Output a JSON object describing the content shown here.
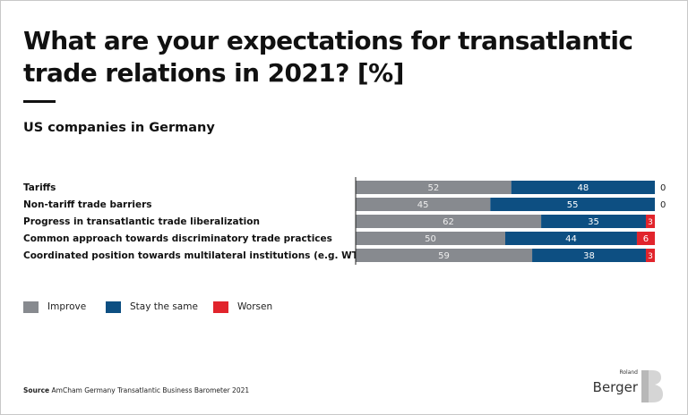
{
  "title": "What are your expectations for transatlantic trade relations in 2021? [%]",
  "subtitle": "US companies in Germany",
  "chart_data": {
    "type": "bar",
    "orientation": "horizontal",
    "stacked": true,
    "categories": [
      "Tariffs",
      "Non-tariff trade barriers",
      "Progress in transatlantic trade liberalization",
      "Common approach towards discriminatory trade practices",
      "Coordinated position towards multilateral institutions (e.g. WTO)"
    ],
    "series": [
      {
        "name": "Improve",
        "color": "#878a8f",
        "values": [
          52,
          45,
          62,
          50,
          59
        ]
      },
      {
        "name": "Stay the same",
        "color": "#0d4f82",
        "values": [
          48,
          55,
          35,
          44,
          38
        ]
      },
      {
        "name": "Worsen",
        "color": "#e1242c",
        "values": [
          0,
          0,
          3,
          6,
          3
        ]
      }
    ],
    "xlim": [
      0,
      100
    ],
    "legend_position": "bottom-left"
  },
  "source": {
    "label": "Source",
    "text": "AmCham Germany Transatlantic Business Barometer 2021"
  },
  "logo": {
    "line1": "Roland",
    "line2": "Berger"
  }
}
